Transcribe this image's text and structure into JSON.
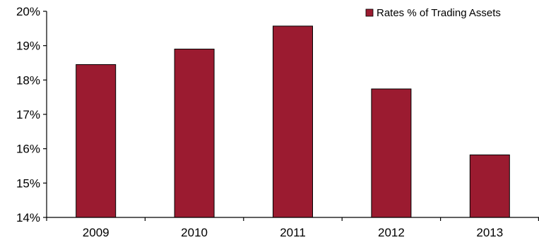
{
  "chart_data": {
    "type": "bar",
    "categories": [
      "2009",
      "2010",
      "2011",
      "2012",
      "2013"
    ],
    "series": [
      {
        "name": "Rates % of Trading Assets",
        "values": [
          18.45,
          18.9,
          19.57,
          17.74,
          15.82
        ],
        "color": "#9b1b30"
      }
    ],
    "title": "",
    "xlabel": "",
    "ylabel": "",
    "ylim": [
      14,
      20
    ],
    "yticks": [
      14,
      15,
      16,
      17,
      18,
      19,
      20
    ],
    "ytick_labels": [
      "14%",
      "15%",
      "16%",
      "17%",
      "18%",
      "19%",
      "20%"
    ],
    "grid": false,
    "legend_position": "top-right"
  }
}
